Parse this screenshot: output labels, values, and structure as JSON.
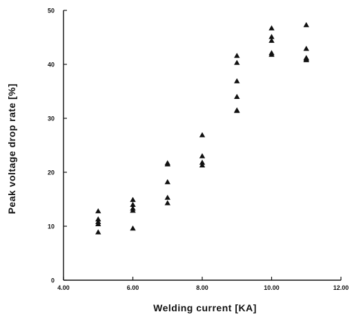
{
  "chart_data": {
    "type": "scatter",
    "title": "",
    "xlabel": "Welding current [KA]",
    "ylabel": "Peak voltage drop rate [%]",
    "xlim": [
      4.0,
      12.0
    ],
    "ylim": [
      0,
      50
    ],
    "x_ticks": [
      4.0,
      6.0,
      8.0,
      10.0,
      12.0
    ],
    "x_tick_labels": [
      "4.00",
      "6.00",
      "8.00",
      "10.00",
      "12.00"
    ],
    "y_ticks": [
      0,
      10,
      20,
      30,
      40,
      50
    ],
    "y_tick_labels": [
      "0",
      "10",
      "20",
      "30",
      "40",
      "50"
    ],
    "grid": false,
    "marker": "filled-triangle",
    "colors": {
      "marker": "#111111",
      "axis": "#111111"
    },
    "series": [
      {
        "x": [
          5,
          5,
          5,
          5,
          5,
          6,
          6,
          6,
          6,
          6,
          7,
          7,
          7,
          7,
          7,
          8,
          8,
          8,
          8,
          9,
          9,
          9,
          9,
          9,
          9,
          10,
          10,
          10,
          10,
          10,
          11,
          11,
          11,
          11,
          11
        ],
        "y": [
          12.8,
          11.3,
          10.8,
          10.4,
          8.9,
          14.9,
          14.0,
          13.3,
          12.9,
          9.6,
          21.7,
          21.5,
          18.2,
          15.3,
          14.3,
          26.9,
          23.0,
          21.8,
          21.3,
          41.6,
          40.3,
          36.9,
          34.0,
          31.5,
          31.4,
          46.7,
          45.1,
          44.4,
          42.1,
          41.8,
          47.3,
          42.9,
          41.2,
          41.0,
          40.8
        ]
      }
    ]
  }
}
